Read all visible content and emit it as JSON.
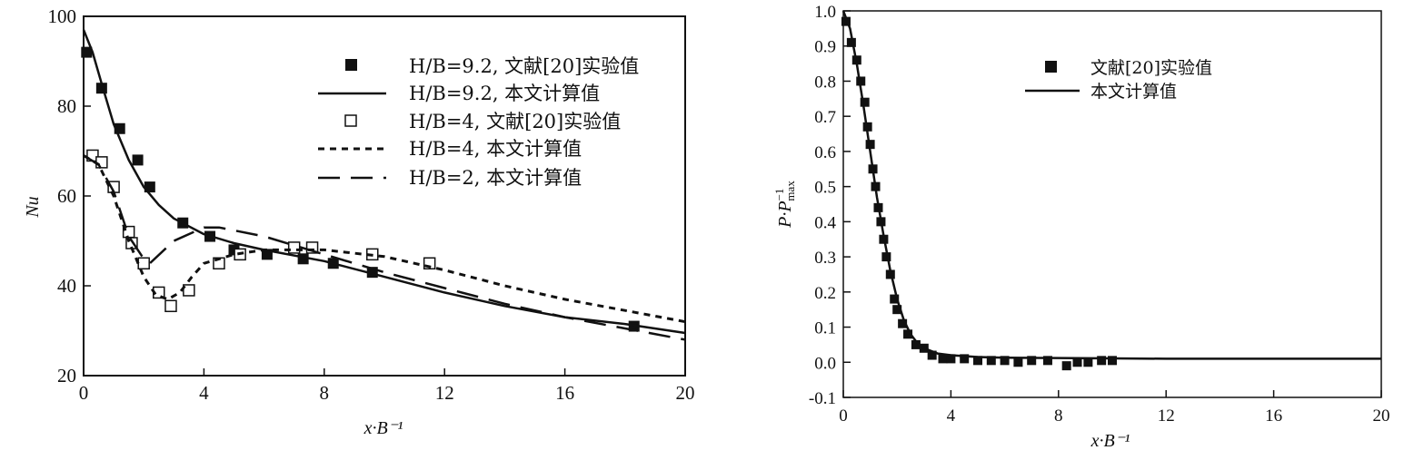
{
  "chart_data": [
    {
      "type": "line",
      "ylabel": "Nu",
      "xlabel": "x·B⁻¹",
      "xlim": [
        0,
        20
      ],
      "ylim": [
        20,
        100
      ],
      "xticks": [
        0,
        4,
        8,
        12,
        16,
        20
      ],
      "yticks": [
        20,
        40,
        60,
        80,
        100
      ],
      "legend_position": "top-right",
      "series": [
        {
          "name": "H/B=9.2, 文献[20]实验值",
          "kind": "filled-square-markers",
          "x": [
            0.1,
            0.6,
            1.2,
            1.8,
            2.2,
            3.3,
            4.2,
            5.0,
            6.1,
            7.3,
            8.3,
            9.6,
            18.3
          ],
          "y": [
            92,
            84,
            75,
            68,
            62,
            54,
            51,
            48,
            47,
            46,
            45,
            43,
            31
          ]
        },
        {
          "name": "H/B=9.2, 本文计算值",
          "kind": "solid-line",
          "x": [
            0,
            0.3,
            0.6,
            1.0,
            1.5,
            2.0,
            2.5,
            3.0,
            4.0,
            5.0,
            6.0,
            8.0,
            10.0,
            12.0,
            14.0,
            16.0,
            18.0,
            20.0
          ],
          "y": [
            97,
            92,
            85,
            76,
            68,
            62,
            58,
            55,
            51.5,
            49.5,
            48,
            45.5,
            42,
            38.5,
            35.5,
            33,
            31.5,
            29.5
          ]
        },
        {
          "name": "H/B=4, 文献[20]实验值",
          "kind": "open-square-markers",
          "x": [
            0.3,
            0.6,
            1.0,
            1.5,
            1.6,
            2.0,
            2.5,
            2.9,
            3.5,
            4.5,
            5.2,
            7.0,
            7.6,
            9.6,
            11.5
          ],
          "y": [
            69,
            67.5,
            62,
            52,
            49.5,
            45,
            38.5,
            35.5,
            39,
            45,
            47,
            48.5,
            48.5,
            47,
            45
          ]
        },
        {
          "name": "H/B=4, 本文计算值",
          "kind": "short-dash-line",
          "x": [
            0,
            0.5,
            1.0,
            1.5,
            2.0,
            2.4,
            2.8,
            3.2,
            3.6,
            4.0,
            5.0,
            6.0,
            8.0,
            10.0,
            12.0,
            14.0,
            16.0,
            18.0,
            20.0
          ],
          "y": [
            69,
            67,
            60,
            50,
            42,
            38,
            37,
            38.5,
            42,
            45,
            47,
            48,
            48,
            46.5,
            43.5,
            40,
            37,
            34.5,
            32
          ]
        },
        {
          "name": "H/B=2, 本文计算值",
          "kind": "long-dash-line",
          "x": [
            0,
            0.5,
            1.0,
            1.5,
            2.0,
            2.2,
            3.0,
            4.0,
            4.5,
            6.0,
            8.0,
            10.0,
            12.0,
            14.0,
            16.0,
            18.0,
            20.0
          ],
          "y": [
            69,
            67,
            61,
            51,
            46,
            45,
            50,
            53,
            53,
            51,
            47,
            43,
            39.5,
            36,
            33,
            30.5,
            28
          ]
        }
      ]
    },
    {
      "type": "line",
      "ylabel": "P·P_max^-1",
      "xlabel": "x·B⁻¹",
      "xlim": [
        0,
        20
      ],
      "ylim": [
        -0.1,
        1.0
      ],
      "xticks": [
        0,
        4,
        8,
        12,
        16,
        20
      ],
      "yticks": [
        -0.1,
        0.0,
        0.1,
        0.2,
        0.3,
        0.4,
        0.5,
        0.6,
        0.7,
        0.8,
        0.9,
        1.0
      ],
      "legend_position": "top-right",
      "series": [
        {
          "name": "文献[20]实验值",
          "kind": "filled-square-markers",
          "x": [
            0.1,
            0.3,
            0.5,
            0.65,
            0.8,
            0.9,
            1.0,
            1.1,
            1.2,
            1.3,
            1.4,
            1.5,
            1.6,
            1.75,
            1.9,
            2.0,
            2.2,
            2.4,
            2.7,
            3.0,
            3.3,
            3.7,
            4.0,
            4.5,
            5.0,
            5.5,
            6.0,
            6.5,
            7.0,
            7.6,
            8.3,
            8.7,
            9.1,
            9.6,
            10.0
          ],
          "y": [
            0.97,
            0.91,
            0.86,
            0.8,
            0.74,
            0.67,
            0.62,
            0.55,
            0.5,
            0.44,
            0.4,
            0.35,
            0.3,
            0.25,
            0.18,
            0.15,
            0.11,
            0.08,
            0.05,
            0.04,
            0.02,
            0.01,
            0.01,
            0.01,
            0.005,
            0.005,
            0.005,
            0.0,
            0.005,
            0.005,
            -0.01,
            0.0,
            0.0,
            0.005,
            0.005
          ]
        },
        {
          "name": "本文计算值",
          "kind": "solid-line",
          "x": [
            0,
            0.25,
            0.5,
            0.75,
            1.0,
            1.25,
            1.5,
            1.75,
            2.0,
            2.25,
            2.5,
            2.75,
            3.0,
            3.5,
            4.0,
            5.0,
            6.0,
            8.0,
            10.0,
            12.0,
            16.0,
            20.0
          ],
          "y": [
            1.0,
            0.95,
            0.85,
            0.73,
            0.6,
            0.47,
            0.36,
            0.26,
            0.18,
            0.12,
            0.08,
            0.055,
            0.04,
            0.025,
            0.02,
            0.015,
            0.013,
            0.012,
            0.011,
            0.01,
            0.01,
            0.01
          ]
        }
      ]
    }
  ]
}
